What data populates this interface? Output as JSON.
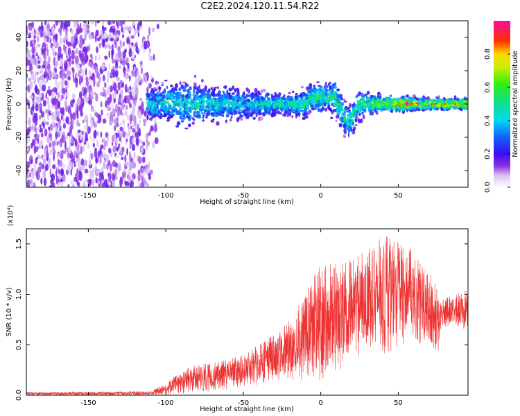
{
  "title": "C2E2.2024.120.11.54.R22",
  "chart_data": [
    {
      "type": "heatmap",
      "title": "C2E2.2024.120.11.54.R22",
      "xlabel": "Height of straight line (km)",
      "ylabel": "Frequency (Hz)",
      "xlim": [
        -190,
        95
      ],
      "ylim": [
        -50,
        50
      ],
      "xticks": [
        -150,
        -100,
        -50,
        0,
        50
      ],
      "yticks": [
        -40,
        -20,
        0,
        20,
        40
      ],
      "colorbar": {
        "label": "Normalized spectral amplitude",
        "ticks": [
          "0.0",
          "0.2",
          "0.4",
          "0.6",
          "0.8"
        ],
        "tick_values": [
          0.0,
          0.2,
          0.4,
          0.6,
          0.8
        ],
        "range": [
          0,
          1
        ],
        "colormap": "rainbow (white → violet → blue → cyan → green → yellow → red → magenta)"
      },
      "signal_profile": [
        {
          "x": -108,
          "spread": 8,
          "amp": 0.3
        },
        {
          "x": -90,
          "spread": 12,
          "amp": 0.35
        },
        {
          "x": -75,
          "spread": 10,
          "amp": 0.35
        },
        {
          "x": -50,
          "spread": 8,
          "amp": 0.3
        },
        {
          "x": -25,
          "spread": 5,
          "amp": 0.4
        },
        {
          "x": 0,
          "spread": 8,
          "amp": 0.45
        },
        {
          "x": 18,
          "spread": 9,
          "amp": 0.4
        },
        {
          "x": 40,
          "spread": 4,
          "amp": 0.6
        },
        {
          "x": 55,
          "spread": 4,
          "amp": 0.8
        },
        {
          "x": 70,
          "spread": 3,
          "amp": 0.7
        },
        {
          "x": 95,
          "spread": 3,
          "amp": 0.9
        }
      ]
    },
    {
      "type": "line",
      "xlabel": "Height of straight line (km)",
      "ylabel": "SNR (10 * v/v)",
      "y_scale_label": "(x10⁴)",
      "xlim": [
        -190,
        95
      ],
      "ylim": [
        0,
        1.65
      ],
      "xticks": [
        -150,
        -100,
        -50,
        0,
        50
      ],
      "yticks": [
        "0.0",
        "0.5",
        "1.0",
        "1.5"
      ],
      "ytick_values": [
        0.0,
        0.5,
        1.0,
        1.5
      ],
      "color": "#ee3333",
      "envelope": [
        {
          "x": -190,
          "min": 0.0,
          "max": 0.03
        },
        {
          "x": -110,
          "min": 0.0,
          "max": 0.04
        },
        {
          "x": -100,
          "min": 0.0,
          "max": 0.12
        },
        {
          "x": -85,
          "min": 0.02,
          "max": 0.3
        },
        {
          "x": -60,
          "min": 0.05,
          "max": 0.35
        },
        {
          "x": -40,
          "min": 0.1,
          "max": 0.5
        },
        {
          "x": -20,
          "min": 0.15,
          "max": 0.75
        },
        {
          "x": 0,
          "min": 0.1,
          "max": 1.3
        },
        {
          "x": 20,
          "min": 0.35,
          "max": 1.35
        },
        {
          "x": 40,
          "min": 0.4,
          "max": 1.6
        },
        {
          "x": 60,
          "min": 0.55,
          "max": 1.45
        },
        {
          "x": 75,
          "min": 0.35,
          "max": 1.1
        },
        {
          "x": 78,
          "min": 0.65,
          "max": 0.95
        },
        {
          "x": 95,
          "min": 0.65,
          "max": 1.05
        }
      ]
    }
  ]
}
